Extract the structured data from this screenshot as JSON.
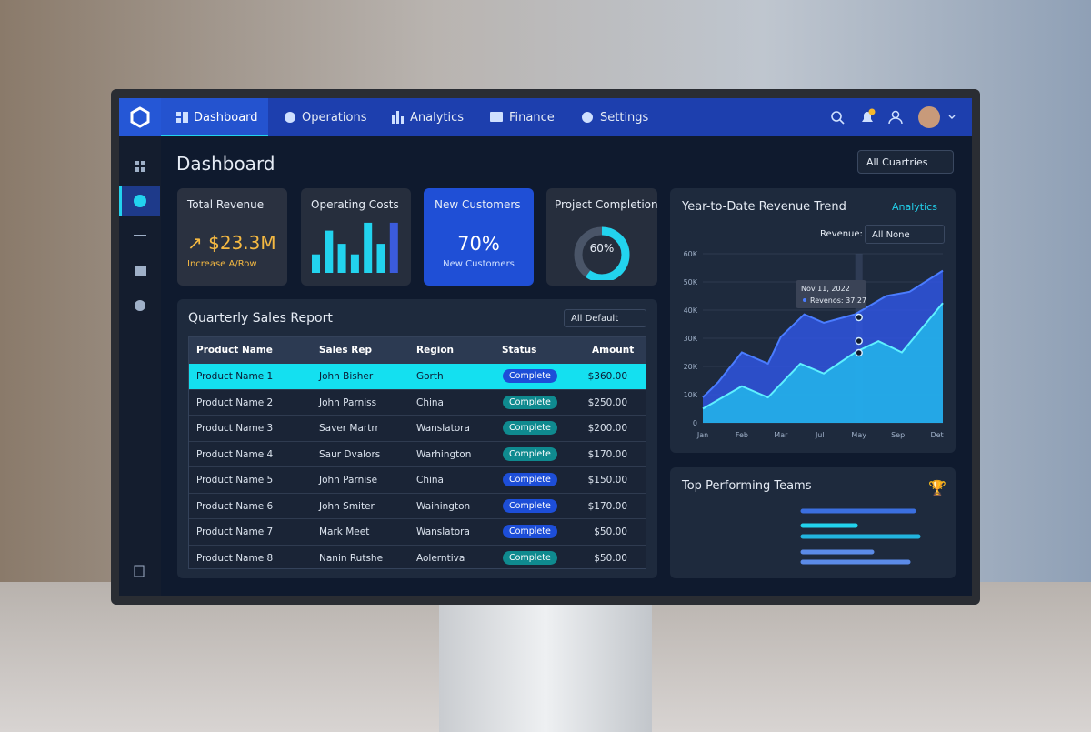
{
  "nav": {
    "items": [
      "Dashboard",
      "Operations",
      "Analytics",
      "Finance",
      "Settings"
    ]
  },
  "page_title": "Dashboard",
  "filter": "All Cuartries",
  "cards": [
    {
      "title": "Total Revenue",
      "value": "$23.3M",
      "caption": "Increase A/Row"
    },
    {
      "title": "Operating Costs",
      "bars": {
        "type": "bar",
        "values": [
          35,
          80,
          55,
          35,
          95,
          55,
          95
        ],
        "ylim": [
          0,
          100
        ],
        "colors": [
          "#22d3ee",
          "#22d3ee",
          "#22d3ee",
          "#22d3ee",
          "#22d3ee",
          "#22d3ee",
          "#3b5bdb"
        ]
      }
    },
    {
      "title": "New Customers",
      "value": "70%",
      "caption": "New Customers"
    },
    {
      "title": "Project Completion",
      "value": 60,
      "value_label": "60%"
    }
  ],
  "table": {
    "title": "Quarterly Sales Report",
    "filter": "All Default",
    "columns": [
      "Product Name",
      "Sales Rep",
      "Region",
      "Status",
      "Amount"
    ],
    "rows": [
      [
        "Product Name 1",
        "John Bisher",
        "Gorth",
        "Complete",
        "$360.00"
      ],
      [
        "Product Name 2",
        "John Parniss",
        "China",
        "Complete",
        "$250.00"
      ],
      [
        "Product Name 3",
        "Saver Martrr",
        "Wanslatora",
        "Complete",
        "$200.00"
      ],
      [
        "Product Name 4",
        "Saur Dvalors",
        "Warhington",
        "Complete",
        "$170.00"
      ],
      [
        "Product Name 5",
        "John Parnise",
        "China",
        "Complete",
        "$150.00"
      ],
      [
        "Product Name 6",
        "John Smiter",
        "Waihington",
        "Complete",
        "$170.00"
      ],
      [
        "Product Name 7",
        "Mark Meet",
        "Wanslatora",
        "Complete",
        "$50.00"
      ],
      [
        "Product Name 8",
        "Nanin Rutshe",
        "Aolerntiva",
        "Complete",
        "$50.00"
      ]
    ],
    "status_colors": [
      "#1d4ed8",
      "#0f8a8f",
      "#0f8a8f",
      "#0f8a8f",
      "#1d4ed8",
      "#1d4ed8",
      "#1d4ed8",
      "#0f8a8f"
    ]
  },
  "chart_data": {
    "type": "area",
    "title": "Year-to-Date Revenue Trend",
    "menu": "Analytics",
    "filter_label": "Revenue:",
    "filter": "All None",
    "xlim": [
      0,
      6.15
    ],
    "xticks": [
      {
        "value": 0,
        "label": "Jan"
      },
      {
        "value": 1,
        "label": "Feb"
      },
      {
        "value": 2,
        "label": "Mar"
      },
      {
        "value": 3,
        "label": "Jul"
      },
      {
        "value": 4,
        "label": "May"
      },
      {
        "value": 5,
        "label": "Sep"
      },
      {
        "value": 6,
        "label": "Det"
      }
    ],
    "ylim": [
      0,
      60000
    ],
    "yticks": [
      0,
      {
        "value": 10000,
        "label": "10K"
      },
      {
        "value": 20000,
        "label": "20K"
      },
      {
        "value": 30000,
        "label": "30K"
      },
      {
        "value": 40000,
        "label": "40K"
      },
      {
        "value": 50000,
        "label": "50K"
      },
      {
        "value": 60000,
        "label": "60K"
      }
    ],
    "grid": true,
    "series": [
      {
        "color": "#2f55e0",
        "x": [
          0,
          0.4,
          1,
          1.67,
          2,
          2.6,
          3.1,
          3.9,
          4.7,
          5.3,
          6.15
        ],
        "values": [
          9000,
          14500,
          25000,
          21000,
          30500,
          38500,
          35500,
          38500,
          45000,
          46500,
          54000
        ]
      },
      {
        "color": "#22c5f0",
        "x": [
          0,
          1,
          1.67,
          2.5,
          3.1,
          3.9,
          4.5,
          5.1,
          6.15
        ],
        "values": [
          5000,
          13000,
          9000,
          21000,
          17500,
          25000,
          29000,
          25000,
          42500
        ]
      }
    ],
    "tooltip": {
      "date": "Nov 11, 2022",
      "text": "Revenos: 37.27"
    }
  },
  "teams": {
    "title": "Top Performing Teams"
  }
}
